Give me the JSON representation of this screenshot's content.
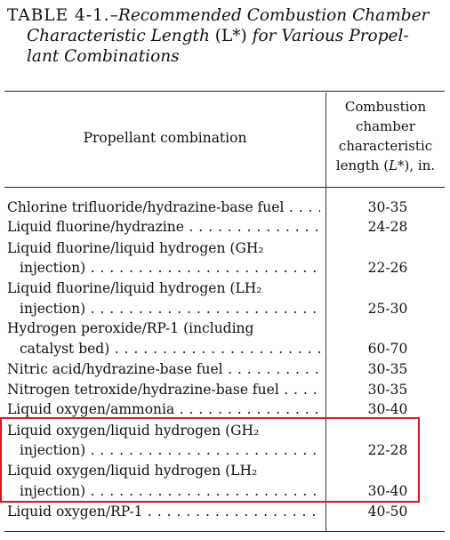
{
  "caption": {
    "number": "TABLE 4-1.",
    "title_line1": "–Recommended Combustion Chamber",
    "title_line2a": "Characteristic Length",
    "title_line2b": "(L*)",
    "title_line2c": "for Various Propel-",
    "title_line3": "lant Combinations"
  },
  "headers": {
    "left": "Propellant combination",
    "right_line1": "Combustion",
    "right_line2": "chamber",
    "right_line3": "characteristic",
    "right_line4_a": "length (",
    "right_line4_b": "L*",
    "right_line4_c": "), in."
  },
  "rows": [
    {
      "label": "Chlorine trifluoride/hydrazine-base fuel",
      "value": "30-35"
    },
    {
      "label": "Liquid fluorine/hydrazine",
      "value": "24-28"
    },
    {
      "label": "Liquid fluorine/liquid hydrogen (GH₂",
      "label2": "injection)",
      "value": "22-26"
    },
    {
      "label": "Liquid fluorine/liquid hydrogen (LH₂",
      "label2": "injection)",
      "value": "25-30"
    },
    {
      "label": "Hydrogen peroxide/RP-1 (including",
      "label2": "catalyst bed)",
      "value": "60-70"
    },
    {
      "label": "Nitric acid/hydrazine-base fuel",
      "value": "30-35"
    },
    {
      "label": "Nitrogen tetroxide/hydrazine-base fuel",
      "value": "30-35"
    },
    {
      "label": "Liquid oxygen/ammonia",
      "value": "30-40"
    },
    {
      "label": "Liquid oxygen/liquid hydrogen (GH₂",
      "label2": "injection)",
      "value": "22-28"
    },
    {
      "label": "Liquid oxygen/liquid hydrogen (LH₂",
      "label2": "injection)",
      "value": "30-40"
    },
    {
      "label": "Liquid oxygen/RP-1",
      "value": "40-50"
    }
  ],
  "highlight_color": "#e3111b"
}
